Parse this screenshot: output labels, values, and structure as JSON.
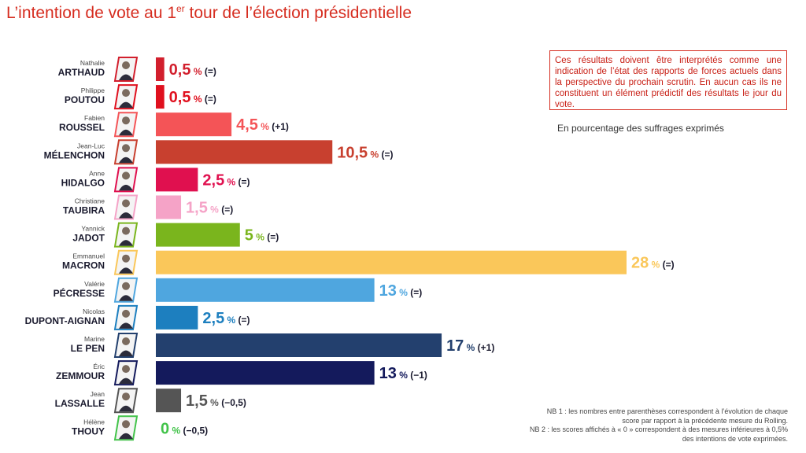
{
  "title": {
    "main": "L’intention de vote au 1",
    "sup": "er",
    "rest": " tour de l’élection présidentielle"
  },
  "disclaimer": "Ces résultats doivent être interprétés comme une indication de l’état des rapports de forces actuels dans la perspective du prochain scrutin. En aucun cas ils ne constituent un élément prédictif des résultats le jour du vote.",
  "unit_note": "En pourcentage des suffrages exprimés",
  "notes": {
    "nb1": "NB 1 : les nombres entre parenthèses correspondent à l’évolution de chaque score par rapport à la précédente mesure du Rolling.",
    "nb2": "NB 2 : les scores affichés à « 0 » correspondent à des mesures inférieures à 0,5% des intentions de vote exprimées."
  },
  "chart_data": {
    "type": "bar",
    "orientation": "horizontal",
    "title": "L’intention de vote au 1er tour de l’élection présidentielle",
    "unit": "En pourcentage des suffrages exprimés",
    "xlim": [
      0,
      28
    ],
    "grid": false,
    "legend": "none",
    "bars": [
      {
        "first_name": "Nathalie",
        "last_name": "ARTHAUD",
        "value": 0.5,
        "label": "0,5",
        "change": "(=)",
        "color": "#d21f2d"
      },
      {
        "first_name": "Philippe",
        "last_name": "POUTOU",
        "value": 0.5,
        "label": "0,5",
        "change": "(=)",
        "color": "#e0101e"
      },
      {
        "first_name": "Fabien",
        "last_name": "ROUSSEL",
        "value": 4.5,
        "label": "4,5",
        "change": "(+1)",
        "color": "#f45457"
      },
      {
        "first_name": "Jean-Luc",
        "last_name": "MÉLENCHON",
        "value": 10.5,
        "label": "10,5",
        "change": "(=)",
        "color": "#c8402f"
      },
      {
        "first_name": "Anne",
        "last_name": "HIDALGO",
        "value": 2.5,
        "label": "2,5",
        "change": "(=)",
        "color": "#e0104f"
      },
      {
        "first_name": "Christiane",
        "last_name": "TAUBIRA",
        "value": 1.5,
        "label": "1,5",
        "change": "(=)",
        "color": "#f5a3c7"
      },
      {
        "first_name": "Yannick",
        "last_name": "JADOT",
        "value": 5,
        "label": "5",
        "change": "(=)",
        "color": "#7ab51d"
      },
      {
        "first_name": "Emmanuel",
        "last_name": "MACRON",
        "value": 28,
        "label": "28",
        "change": "(=)",
        "color": "#fac75a"
      },
      {
        "first_name": "Valérie",
        "last_name": "PÉCRESSE",
        "value": 13,
        "label": "13",
        "change": "(=)",
        "color": "#4fa6df"
      },
      {
        "first_name": "Nicolas",
        "last_name": "DUPONT-AIGNAN",
        "value": 2.5,
        "label": "2,5",
        "change": "(=)",
        "color": "#1d7fbf"
      },
      {
        "first_name": "Marine",
        "last_name": "LE PEN",
        "value": 17,
        "label": "17",
        "change": "(+1)",
        "color": "#23406e"
      },
      {
        "first_name": "Éric",
        "last_name": "ZEMMOUR",
        "value": 13,
        "label": "13",
        "change": "(−1)",
        "color": "#141a5c"
      },
      {
        "first_name": "Jean",
        "last_name": "LASSALLE",
        "value": 1.5,
        "label": "1,5",
        "change": "(−0,5)",
        "color": "#555555"
      },
      {
        "first_name": "Hélène",
        "last_name": "THOUY",
        "value": 0,
        "label": "0",
        "change": "(−0,5)",
        "color": "#42c34a"
      }
    ]
  }
}
